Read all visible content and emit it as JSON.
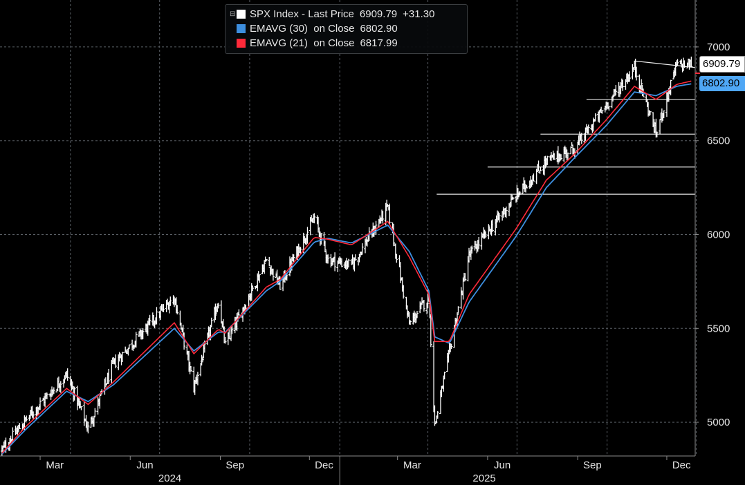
{
  "legend": {
    "rows": [
      {
        "name": "SPX Index - Last Price",
        "value": "6909.79",
        "change": "+31.30",
        "color": "#ffffff"
      },
      {
        "name": "EMAVG (30)  on Close",
        "value": "6802.90",
        "color": "#3d8fe0"
      },
      {
        "name": "EMAVG (21)  on Close",
        "value": "6817.99",
        "color": "#ff2a3a"
      }
    ]
  },
  "price_tags": {
    "last": "6909.79",
    "ema30": "6802.90"
  },
  "colors": {
    "background": "#000000",
    "grid": "#5a5f66",
    "price": "#ffffff",
    "ema30": "#3d8fe0",
    "ema21": "#ff2a3a",
    "axis_text": "#e6e6e6"
  },
  "chart_data": {
    "type": "line",
    "title": "",
    "xlabel": "",
    "ylabel": "",
    "ylim": [
      4820,
      7250
    ],
    "y_ticks": [
      5000,
      5500,
      6000,
      6500,
      7000
    ],
    "grid": true,
    "x_months": [
      "Mar",
      "Jun",
      "Sep",
      "Dec",
      "Mar",
      "Jun",
      "Sep",
      "Dec"
    ],
    "x_years": [
      "2024",
      "2025"
    ],
    "xlim": [
      "2024-01-20",
      "2025-12-30"
    ],
    "x": [
      "2024-01-22",
      "2024-02-15",
      "2024-03-28",
      "2024-04-19",
      "2024-05-15",
      "2024-07-16",
      "2024-08-05",
      "2024-08-30",
      "2024-09-06",
      "2024-10-18",
      "2024-11-01",
      "2024-12-06",
      "2024-12-20",
      "2025-01-13",
      "2025-02-19",
      "2025-03-13",
      "2025-04-02",
      "2025-04-08",
      "2025-04-23",
      "2025-05-13",
      "2025-06-30",
      "2025-07-31",
      "2025-08-29",
      "2025-09-30",
      "2025-10-29",
      "2025-11-20",
      "2025-12-11",
      "2025-12-26"
    ],
    "series": [
      {
        "name": "SPX Index - Last Price",
        "values": [
          4850,
          5010,
          5254,
          4967,
          5310,
          5667,
          5186,
          5648,
          5408,
          5864,
          5728,
          6090,
          5867,
          5836,
          6144,
          5521,
          5670,
          4982,
          5375,
          5887,
          6205,
          6390,
          6460,
          6688,
          6890,
          6538,
          6901,
          6910
        ]
      },
      {
        "name": "EMAVG (30)",
        "values": [
          4830,
          4960,
          5165,
          5110,
          5200,
          5500,
          5380,
          5480,
          5480,
          5700,
          5750,
          5960,
          5980,
          5955,
          6050,
          5910,
          5700,
          5455,
          5420,
          5640,
          5990,
          6250,
          6410,
          6580,
          6760,
          6740,
          6790,
          6803
        ]
      },
      {
        "name": "EMAVG (21)",
        "values": [
          4835,
          4975,
          5180,
          5095,
          5215,
          5530,
          5365,
          5495,
          5475,
          5720,
          5760,
          5985,
          5975,
          5945,
          6070,
          5880,
          5680,
          5430,
          5430,
          5680,
          6030,
          6290,
          6430,
          6610,
          6790,
          6720,
          6800,
          6818
        ]
      }
    ],
    "trend_lines": [
      {
        "from": [
          "2025-10-29",
          6925
        ],
        "to": [
          "2025-12-30",
          6890
        ]
      },
      {
        "from": [
          "2025-09-10",
          6720
        ],
        "to": [
          "2025-12-30",
          6720
        ]
      },
      {
        "from": [
          "2025-07-25",
          6535
        ],
        "to": [
          "2025-12-30",
          6535
        ]
      },
      {
        "from": [
          "2025-06-01",
          6360
        ],
        "to": [
          "2025-12-30",
          6360
        ]
      },
      {
        "from": [
          "2025-04-10",
          6215
        ],
        "to": [
          "2025-12-30",
          6215
        ]
      }
    ]
  }
}
